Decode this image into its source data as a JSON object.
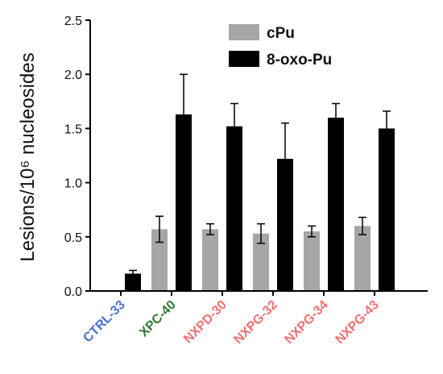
{
  "chart_data": {
    "type": "bar",
    "ylabel": "Lesions/10⁶ nucleosides",
    "ylim": [
      0,
      2.5
    ],
    "yticks": [
      "0.0",
      "0.5",
      "1.0",
      "1.5",
      "2.0",
      "2.5"
    ],
    "categories": [
      "CTRL-33",
      "XPC-40",
      "NXPD-30",
      "NXPG-32",
      "NXPG-34",
      "NXPG-43"
    ],
    "category_colors": [
      "#4a6fd1",
      "#2e7d32",
      "#f07070",
      "#f07070",
      "#f07070",
      "#f07070"
    ],
    "series": [
      {
        "name": "cPu",
        "color": "#a6a6a6",
        "values": [
          0.0,
          0.57,
          0.57,
          0.53,
          0.55,
          0.6
        ],
        "errors": [
          0.0,
          0.12,
          0.05,
          0.09,
          0.05,
          0.08
        ]
      },
      {
        "name": "8-oxo-Pu",
        "color": "#000000",
        "values": [
          0.16,
          1.63,
          1.52,
          1.22,
          1.6,
          1.5
        ],
        "errors": [
          0.03,
          0.37,
          0.21,
          0.33,
          0.13,
          0.16
        ]
      }
    ],
    "legend_position": "top-right",
    "grid": false
  }
}
